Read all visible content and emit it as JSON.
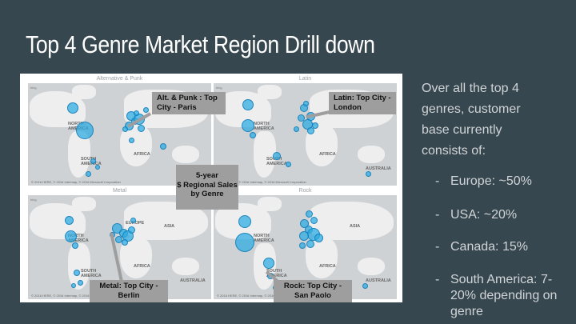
{
  "slide": {
    "title": "Top 4 Genre Market Region Drill down",
    "center_label": "5-year $ Regional Sales by Genre",
    "center_lines": [
      "5-year",
      "$ Regional Sales",
      "by Genre"
    ]
  },
  "maps": [
    {
      "title": "Alternative & Punk",
      "callout": [
        "Alt. & Punk : Top",
        "City - Paris"
      ]
    },
    {
      "title": "Latin",
      "callout": [
        "Latin: Top City -",
        "London"
      ]
    },
    {
      "title": "Metal",
      "callout": [
        "Metal: Top City -",
        "Berlin"
      ]
    },
    {
      "title": "Rock",
      "callout": [
        "Rock: Top City -",
        "San Paolo"
      ]
    }
  ],
  "map_labels": {
    "north_america": "NORTH AMERICA",
    "south_america": "SOUTH AMERICA",
    "africa": "AFRICA",
    "asia": "ASIA",
    "australia": "AUSTRALIA",
    "europe": "EUROPE"
  },
  "copyright": "© 2016 HERE, © 2016 Intermap, © 2016 Microsoft Corporation",
  "bing": "bing",
  "summary": {
    "intro": "Over all the top 4 genres, customer base currently consists of:",
    "intro_lines": [
      "Over all the top 4",
      "genres, customer",
      "base currently",
      "consists of:"
    ],
    "bullets": [
      {
        "dash": "-",
        "text": "Europe: ~50%"
      },
      {
        "dash": "-",
        "text": "USA: ~20%"
      },
      {
        "dash": "-",
        "text": "Canada: 15%"
      },
      {
        "dash": "-",
        "text": "South America: 7-20% depending on genre"
      }
    ]
  },
  "colors": {
    "background": "#37474f",
    "bubble": "#29abe2",
    "callout": "#9e9e9e"
  }
}
